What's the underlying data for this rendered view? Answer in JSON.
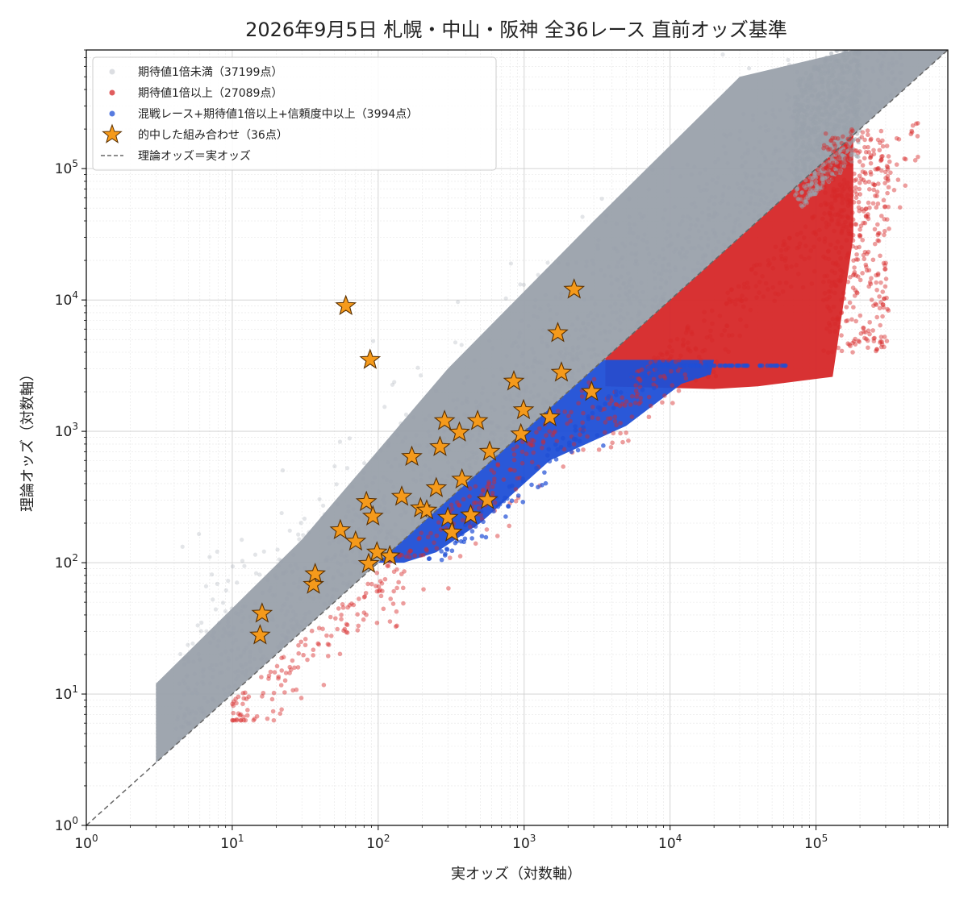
{
  "chart_data": {
    "type": "scatter",
    "title": "2026年9月5日 札幌・中山・阪神 全36レース 直前オッズ基準",
    "xlabel": "実オッズ（対数軸）",
    "ylabel": "理論オッズ（対数軸）",
    "xscale": "log",
    "yscale": "log",
    "xlim": [
      1,
      800000
    ],
    "ylim": [
      1,
      800000
    ],
    "x_ticks": [
      {
        "value": 1,
        "label": "10^0"
      },
      {
        "value": 10,
        "label": "10^1"
      },
      {
        "value": 100,
        "label": "10^2"
      },
      {
        "value": 1000,
        "label": "10^3"
      },
      {
        "value": 10000,
        "label": "10^4"
      },
      {
        "value": 100000,
        "label": "10^5"
      }
    ],
    "y_ticks": [
      {
        "value": 1,
        "label": "10^0"
      },
      {
        "value": 10,
        "label": "10^1"
      },
      {
        "value": 100,
        "label": "10^2"
      },
      {
        "value": 1000,
        "label": "10^3"
      },
      {
        "value": 10000,
        "label": "10^4"
      },
      {
        "value": 100000,
        "label": "10^5"
      }
    ],
    "grid": true,
    "legend_position": "top-left",
    "series": [
      {
        "name": "期待値1倍未満（37199点）",
        "color": "#9aa1ab",
        "marker": "circle",
        "count": 37199,
        "rule": "y > x"
      },
      {
        "name": "期待値1倍以上（27089点）",
        "color": "#d62728",
        "marker": "circle",
        "count": 27089,
        "rule": "y <= x"
      },
      {
        "name": "混戦レース+期待値1倍以上+信頼度中以上（3994点）",
        "color": "#1f4fd6",
        "marker": "circle",
        "count": 3994,
        "rule": "y <= x, 100 <= y <= 3500"
      },
      {
        "name": "的中した組み合わせ（36点）",
        "color": "#f59a1b",
        "marker": "star",
        "points": [
          [
            15.5,
            28
          ],
          [
            16,
            41
          ],
          [
            36,
            68
          ],
          [
            37,
            82
          ],
          [
            55,
            177
          ],
          [
            60,
            9000
          ],
          [
            70,
            145
          ],
          [
            83,
            290
          ],
          [
            86,
            98
          ],
          [
            88,
            3500
          ],
          [
            92,
            225
          ],
          [
            120,
            112
          ],
          [
            145,
            318
          ],
          [
            170,
            640
          ],
          [
            195,
            260
          ],
          [
            215,
            250
          ],
          [
            250,
            370
          ],
          [
            265,
            760
          ],
          [
            285,
            1200
          ],
          [
            300,
            220
          ],
          [
            320,
            170
          ],
          [
            360,
            980
          ],
          [
            375,
            430
          ],
          [
            480,
            1200
          ],
          [
            560,
            300
          ],
          [
            580,
            700
          ],
          [
            850,
            2400
          ],
          [
            950,
            950
          ],
          [
            990,
            1450
          ],
          [
            1500,
            1280
          ],
          [
            1700,
            5600
          ],
          [
            1800,
            2800
          ],
          [
            2200,
            12000
          ],
          [
            2900,
            2000
          ],
          [
            98,
            120
          ],
          [
            430,
            230
          ]
        ]
      },
      {
        "name": "理論オッズ＝実オッズ",
        "color": "#666666",
        "style": "dashed-line",
        "x": [
          1,
          800000
        ],
        "y": [
          1,
          800000
        ]
      }
    ]
  }
}
